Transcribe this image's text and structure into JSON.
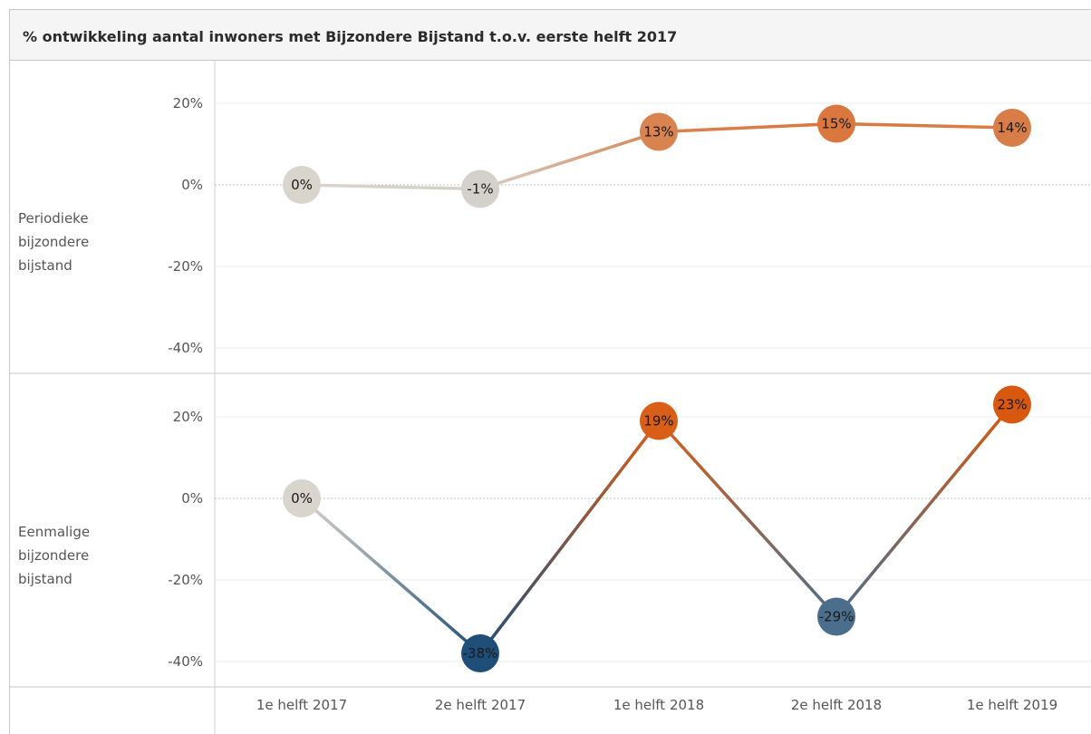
{
  "title": "% ontwikkeling aantal inwoners met Bijzondere Bijstand t.o.v. eerste helft 2017",
  "chart_data": {
    "type": "line",
    "categories": [
      "1e helft 2017",
      "2e helft 2017",
      "1e helft 2018",
      "2e helft 2018",
      "1e helft 2019"
    ],
    "panels": [
      {
        "name_lines": [
          "Periodieke",
          "bijzondere",
          "bijstand"
        ],
        "values": [
          0,
          -1,
          13,
          15,
          14
        ],
        "labels": [
          "0%",
          "-1%",
          "13%",
          "15%",
          "14%"
        ],
        "y_ticks": [
          "20%",
          "0%",
          "-20%",
          "-40%"
        ],
        "ylim": [
          -40,
          20
        ]
      },
      {
        "name_lines": [
          "Eenmalige",
          "bijzondere",
          "bijstand"
        ],
        "values": [
          0,
          -38,
          19,
          -29,
          23
        ],
        "labels": [
          "0%",
          "-38%",
          "19%",
          "-29%",
          "23%"
        ],
        "y_ticks": [
          "20%",
          "0%",
          "-20%",
          "-40%"
        ],
        "ylim": [
          -40,
          20
        ]
      }
    ],
    "color_scale": {
      "negative": "#1f4e79",
      "neutral": "#d9d4cc",
      "positive": "#d9580f"
    },
    "grid": true
  }
}
